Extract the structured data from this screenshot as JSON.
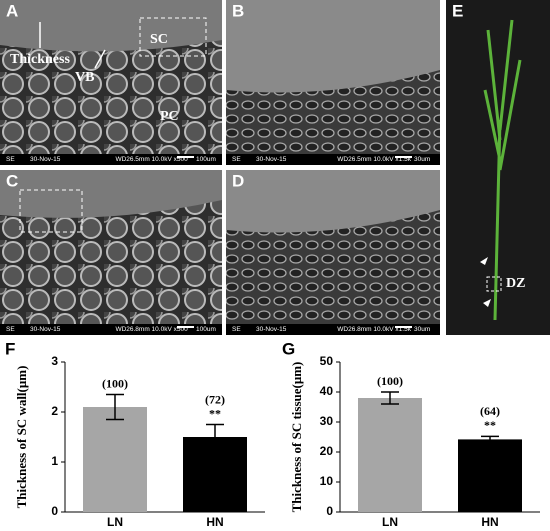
{
  "panels": [
    {
      "label": "A",
      "annotations": [
        "Thickness",
        "VB",
        "SC",
        "PC"
      ],
      "footer": [
        "SE",
        "30-Nov-15",
        "WD26.5mm 10.0kV x500",
        "100um"
      ]
    },
    {
      "label": "B",
      "footer": [
        "SE",
        "30-Nov-15",
        "WD26.5mm 10.0kV x1.5k",
        "30um"
      ]
    },
    {
      "label": "C",
      "footer": [
        "SE",
        "30-Nov-15",
        "WD26.8mm 10.0kV x500",
        "100um"
      ]
    },
    {
      "label": "D",
      "footer": [
        "SE",
        "30-Nov-15",
        "WD26.8mm 10.0kV x1.5k",
        "30um"
      ]
    },
    {
      "label": "E",
      "annotations": [
        "DZ"
      ]
    }
  ],
  "chart_data": [
    {
      "type": "bar",
      "panel_label": "F",
      "y_label": "Thickness of SC wall(μm)",
      "categories": [
        "LN",
        "HN"
      ],
      "values": [
        2.1,
        1.5
      ],
      "errors": [
        0.25,
        0.25
      ],
      "colors": [
        "#a6a6a6",
        "#000000"
      ],
      "annotations": [
        "(100)",
        "(72)"
      ],
      "significance": [
        null,
        "**"
      ],
      "ylim": [
        0,
        3
      ],
      "yticks": [
        0,
        1,
        2,
        3
      ]
    },
    {
      "type": "bar",
      "panel_label": "G",
      "y_label": "Thickness of SC tissue(μm)",
      "categories": [
        "LN",
        "HN"
      ],
      "values": [
        38,
        24.2
      ],
      "errors": [
        2,
        1
      ],
      "colors": [
        "#a6a6a6",
        "#000000"
      ],
      "annotations": [
        "(100)",
        "(64)"
      ],
      "significance": [
        null,
        "**"
      ],
      "ylim": [
        0,
        50
      ],
      "yticks": [
        0,
        10,
        20,
        30,
        40,
        50
      ]
    }
  ]
}
